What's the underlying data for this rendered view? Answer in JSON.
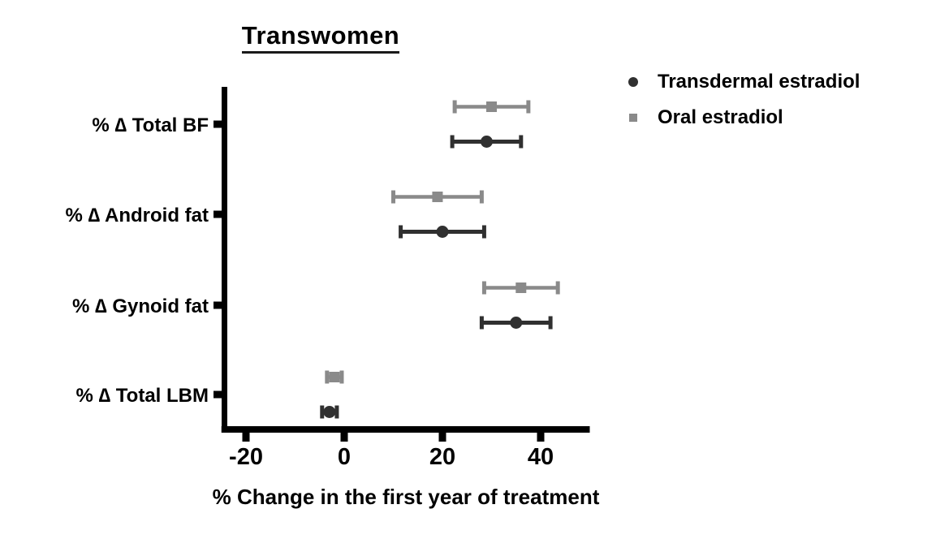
{
  "chart_data": {
    "type": "scatter",
    "subtype": "horizontal-dot-plot-with-error-bars",
    "title": "Transwomen",
    "xlabel": "% Change in the first year of treatment",
    "categories": [
      "% ∆ Total BF",
      "% ∆ Android fat",
      "% ∆ Gynoid fat",
      "% ∆ Total LBM"
    ],
    "x_ticks": [
      -20,
      0,
      20,
      40
    ],
    "xlim": [
      -25,
      50
    ],
    "grid": false,
    "legend_position": "top-right",
    "axis_color": "#000000",
    "series": [
      {
        "name": "Transdermal estradiol",
        "marker": "circle",
        "color": "#303030",
        "values": [
          29,
          20,
          35,
          -3
        ],
        "ci_low": [
          22,
          11.5,
          28,
          -4.5
        ],
        "ci_high": [
          36,
          28.5,
          42,
          -1.5
        ]
      },
      {
        "name": "Oral estradiol",
        "marker": "square",
        "color": "#8a8a8a",
        "values": [
          30,
          19,
          36,
          -2
        ],
        "ci_low": [
          22.5,
          10,
          28.5,
          -3.5
        ],
        "ci_high": [
          37.5,
          28,
          43.5,
          -0.5
        ]
      }
    ]
  }
}
